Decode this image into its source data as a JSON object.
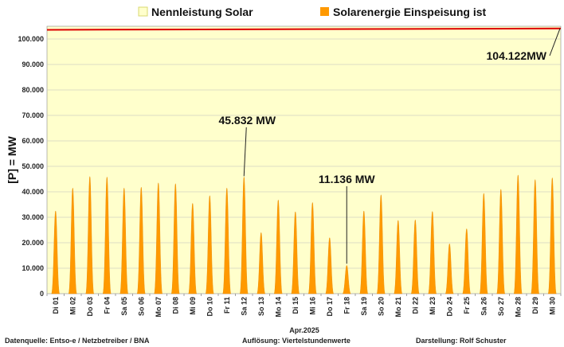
{
  "chart_data": {
    "type": "area",
    "legend": [
      {
        "label": "Nennleistung Solar",
        "color": "#ffffcc",
        "border": "#d8d870"
      },
      {
        "label": "Solarenergie Einspeisung ist",
        "color": "#ff9900",
        "border": "#ff9900"
      }
    ],
    "legend_position": "top",
    "ylabel": "[P] = MW",
    "ylim": [
      0,
      105000
    ],
    "yticks": [
      "0",
      "10.000",
      "20.000",
      "30.000",
      "40.000",
      "50.000",
      "60.000",
      "70.000",
      "80.000",
      "90.000",
      "100.000"
    ],
    "xlabel": "Apr.2025",
    "categories": [
      "Di 01",
      "Mi 02",
      "Do 03",
      "Fr 04",
      "Sa 05",
      "So 06",
      "Mo 07",
      "Di 08",
      "Mi 09",
      "Do 10",
      "Fr 11",
      "Sa 12",
      "So 13",
      "Mo 14",
      "Di 15",
      "Mi 16",
      "Do 17",
      "Fr 18",
      "Sa 19",
      "So 20",
      "Mo 21",
      "Di 22",
      "Mi 23",
      "Do 24",
      "Fr 25",
      "Sa 26",
      "So 27",
      "Mo 28",
      "Di 29",
      "Mi 30"
    ],
    "series": [
      {
        "name": "Solarenergie Einspeisung ist",
        "color": "#ff9900",
        "daily_peaks": [
          32500,
          41500,
          46000,
          45800,
          41500,
          41800,
          43500,
          43200,
          35500,
          38500,
          41500,
          45832,
          24000,
          36800,
          32200,
          35800,
          22000,
          11136,
          32500,
          38800,
          28800,
          29000,
          32300,
          19600,
          25500,
          39400,
          41000,
          46600,
          44800,
          45500
        ]
      },
      {
        "name": "Nennleistung Solar",
        "color": "#dd0000",
        "start": 103600,
        "end": 104122
      }
    ],
    "annotations": [
      {
        "text": "45.832 MW",
        "day_index": 11,
        "value": 45832
      },
      {
        "text": "11.136 MW",
        "day_index": 17,
        "value": 11136
      },
      {
        "text": "104.122MW",
        "value": 104122
      }
    ],
    "grid": true,
    "plot_background": "#ffffcc"
  },
  "footer": {
    "source": "Datenquelle:  Entso-e  / Netzbetreiber / BNA",
    "resolution": "Auflösung: Viertelstundenwerte",
    "author": "Darstellung:  Rolf Schuster"
  }
}
